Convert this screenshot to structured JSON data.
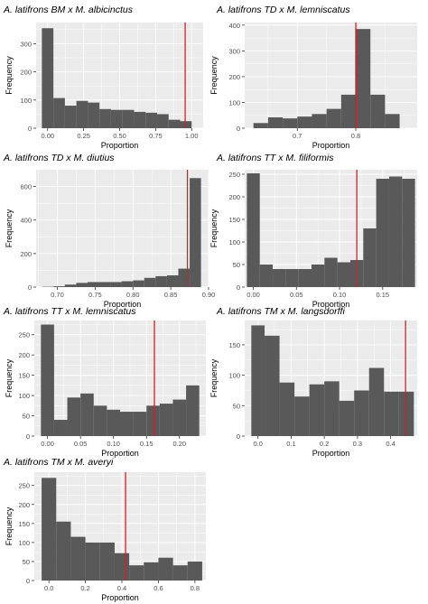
{
  "figure": {
    "panels": [
      {
        "title": "A. latifrons BM x M. albicinctus"
      },
      {
        "title": "A. latifrons TD x M. lemniscatus"
      },
      {
        "title": "A. latifrons TD x M. diutius"
      },
      {
        "title": "A. latifrons TT x M. filiformis"
      },
      {
        "title": "A. latifrons TT x M. lemniscatus"
      },
      {
        "title": "A. latifrons TM x M. langsdorffi"
      },
      {
        "title": "A. latifrons TM x M. averyi"
      }
    ]
  },
  "colors": {
    "panel_background": "#ebebeb",
    "grid_major": "#ffffff",
    "bar_fill": "#595959",
    "observed_line": "#e41a1c",
    "axis_text": "#4d4d4d",
    "title_text": "#000000"
  },
  "chart_data": [
    {
      "type": "bar",
      "title": "A. latifrons BM x M. albicinctus",
      "xlabel": "Proportion",
      "ylabel": "Frequency",
      "xlim": [
        -0.08,
        1.08
      ],
      "ylim": [
        0,
        375
      ],
      "xticks": [
        0.0,
        0.25,
        0.5,
        0.75,
        1.0
      ],
      "xtick_labels": [
        "0.00",
        "0.25",
        "0.50",
        "0.75",
        "1.00"
      ],
      "yticks": [
        0,
        100,
        200,
        300
      ],
      "yticks_labels": [
        "0",
        "100",
        "200",
        "300"
      ],
      "bin_edges": [
        -0.04,
        0.04,
        0.12,
        0.2,
        0.28,
        0.36,
        0.44,
        0.52,
        0.6,
        0.68,
        0.76,
        0.84,
        0.92,
        1.0
      ],
      "counts": [
        355,
        107,
        80,
        97,
        91,
        68,
        65,
        65,
        58,
        55,
        50,
        30,
        25
      ],
      "observed_value": 0.955,
      "grid": true
    },
    {
      "type": "bar",
      "title": "A. latifrons TD x M. lemniscatus",
      "xlabel": "Proportion",
      "ylabel": "Frequency",
      "xlim": [
        0.61,
        0.905
      ],
      "ylim": [
        0,
        410
      ],
      "xticks": [
        0.7,
        0.8
      ],
      "xtick_labels": [
        "0.7",
        "0.8"
      ],
      "yticks": [
        0,
        100,
        200,
        300,
        400
      ],
      "yticks_labels": [
        "0",
        "100",
        "200",
        "300",
        "400"
      ],
      "bin_edges": [
        0.625,
        0.65,
        0.675,
        0.7,
        0.725,
        0.75,
        0.775,
        0.8,
        0.825,
        0.85,
        0.875
      ],
      "counts": [
        20,
        42,
        38,
        45,
        55,
        75,
        130,
        385,
        130,
        55
      ],
      "observed_value": 0.8,
      "grid": true
    },
    {
      "type": "bar",
      "title": "A. latifrons TD x M. diutius",
      "xlabel": "Proportion",
      "ylabel": "Frequency",
      "xlim": [
        0.672,
        0.9
      ],
      "ylim": [
        0,
        700
      ],
      "xticks": [
        0.7,
        0.75,
        0.8,
        0.85,
        0.9
      ],
      "xtick_labels": [
        "0.70",
        "0.75",
        "0.80",
        "0.85",
        "0.90"
      ],
      "yticks": [
        0,
        200,
        400,
        600
      ],
      "yticks_labels": [
        "0",
        "200",
        "400",
        "600"
      ],
      "bin_edges": [
        0.68,
        0.695,
        0.71,
        0.725,
        0.74,
        0.755,
        0.77,
        0.785,
        0.8,
        0.815,
        0.83,
        0.845,
        0.86,
        0.875,
        0.89
      ],
      "counts": [
        2,
        5,
        15,
        25,
        30,
        30,
        30,
        35,
        40,
        55,
        65,
        70,
        110,
        650
      ],
      "observed_value": 0.872,
      "grid": true
    },
    {
      "type": "bar",
      "title": "A. latifrons TT x M. filiformis",
      "xlabel": "Proportion",
      "ylabel": "Frequency",
      "xlim": [
        -0.01,
        0.19
      ],
      "ylim": [
        0,
        260
      ],
      "xticks": [
        0.0,
        0.05,
        0.1,
        0.15
      ],
      "xtick_labels": [
        "0.00",
        "0.05",
        "0.10",
        "0.15"
      ],
      "yticks": [
        0,
        50,
        100,
        150,
        200,
        250
      ],
      "yticks_labels": [
        "0",
        "50",
        "100",
        "150",
        "200",
        "250"
      ],
      "bin_edges": [
        -0.0075,
        0.0075,
        0.0225,
        0.0375,
        0.0525,
        0.0675,
        0.0825,
        0.0975,
        0.1125,
        0.1275,
        0.1425,
        0.1575,
        0.1725,
        0.1875
      ],
      "counts": [
        252,
        50,
        40,
        40,
        40,
        50,
        65,
        55,
        60,
        130,
        240,
        245,
        240
      ],
      "observed_value": 0.12,
      "grid": true
    },
    {
      "type": "bar",
      "title": "A. latifrons TT x M. lemniscatus",
      "xlabel": "Proportion",
      "ylabel": "Frequency",
      "xlim": [
        -0.02,
        0.24
      ],
      "ylim": [
        0,
        285
      ],
      "xticks": [
        0.0,
        0.05,
        0.1,
        0.15,
        0.2
      ],
      "xtick_labels": [
        "0.00",
        "0.05",
        "0.10",
        "0.15",
        "0.20"
      ],
      "yticks": [
        0,
        50,
        100,
        150,
        200,
        250
      ],
      "yticks_labels": [
        "0",
        "50",
        "100",
        "150",
        "200",
        "250"
      ],
      "bin_edges": [
        -0.01,
        0.01,
        0.03,
        0.05,
        0.07,
        0.09,
        0.11,
        0.13,
        0.15,
        0.17,
        0.19,
        0.21,
        0.23
      ],
      "counts": [
        275,
        40,
        95,
        105,
        75,
        65,
        60,
        60,
        75,
        80,
        90,
        125
      ],
      "observed_value": 0.162,
      "grid": true
    },
    {
      "type": "bar",
      "title": "A. latifrons TM x M. langsdorffi",
      "xlabel": "Proportion",
      "ylabel": "Frequency",
      "xlim": [
        -0.04,
        0.48
      ],
      "ylim": [
        0,
        190
      ],
      "xticks": [
        0.0,
        0.1,
        0.2,
        0.3,
        0.4
      ],
      "xtick_labels": [
        "0.0",
        "0.1",
        "0.2",
        "0.3",
        "0.4"
      ],
      "yticks": [
        0,
        50,
        100,
        150
      ],
      "yticks_labels": [
        "0",
        "50",
        "100",
        "150"
      ],
      "bin_edges": [
        -0.02,
        0.02,
        0.065,
        0.11,
        0.155,
        0.2,
        0.245,
        0.29,
        0.335,
        0.38,
        0.425,
        0.47
      ],
      "counts": [
        182,
        165,
        88,
        65,
        85,
        90,
        58,
        75,
        112,
        73,
        73
      ],
      "observed_value": 0.445,
      "grid": true
    },
    {
      "type": "bar",
      "title": "A. latifrons TM x M. averyi",
      "xlabel": "Proportion",
      "ylabel": "Frequency",
      "xlim": [
        -0.08,
        0.86
      ],
      "ylim": [
        0,
        285
      ],
      "xticks": [
        0.0,
        0.2,
        0.4,
        0.6,
        0.8
      ],
      "xtick_labels": [
        "0.0",
        "0.2",
        "0.4",
        "0.6",
        "0.8"
      ],
      "yticks": [
        0,
        50,
        100,
        150,
        200,
        250
      ],
      "yticks_labels": [
        "0",
        "50",
        "100",
        "150",
        "200",
        "250"
      ],
      "bin_edges": [
        -0.04,
        0.04,
        0.12,
        0.2,
        0.28,
        0.36,
        0.44,
        0.52,
        0.6,
        0.68,
        0.76,
        0.84
      ],
      "counts": [
        270,
        155,
        115,
        100,
        100,
        72,
        40,
        48,
        60,
        40,
        50
      ],
      "observed_value": 0.42,
      "grid": true
    }
  ]
}
